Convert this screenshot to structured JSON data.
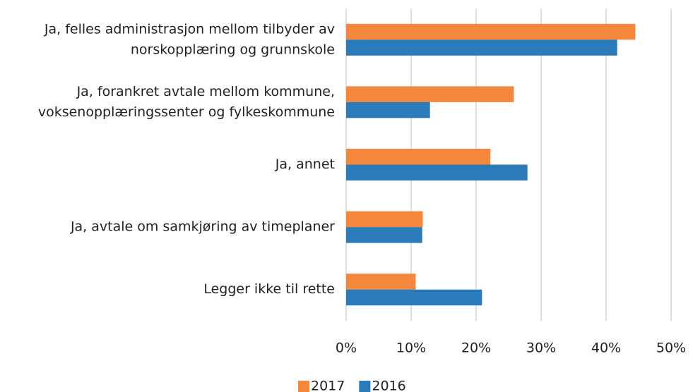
{
  "chart_data": {
    "type": "barh",
    "categories": [
      [
        "Ja, felles administrasjon mellom tilbyder av",
        "norskopplæring og grunnskole"
      ],
      [
        "Ja, forankret avtale mellom kommune,",
        "voksenopplæringssenter og fylkeskommune"
      ],
      [
        "Ja, annet"
      ],
      [
        "Ja, avtale om samkjøring av timeplaner"
      ],
      [
        "Legger ikke til rette"
      ]
    ],
    "series": [
      {
        "name": "2017",
        "color": "#f4873c",
        "values": [
          44.5,
          25.8,
          22.2,
          11.8,
          10.7
        ]
      },
      {
        "name": "2016",
        "color": "#2b7bba",
        "values": [
          41.7,
          12.9,
          27.9,
          11.7,
          20.9
        ]
      }
    ],
    "xlim": [
      0,
      50
    ],
    "xticks": [
      {
        "value": 0,
        "label": "0%"
      },
      {
        "value": 10,
        "label": "10%"
      },
      {
        "value": 20,
        "label": "20%"
      },
      {
        "value": 30,
        "label": "30%"
      },
      {
        "value": 40,
        "label": "40%"
      },
      {
        "value": 50,
        "label": "50%"
      }
    ],
    "grid": true,
    "legend": "bottom"
  }
}
